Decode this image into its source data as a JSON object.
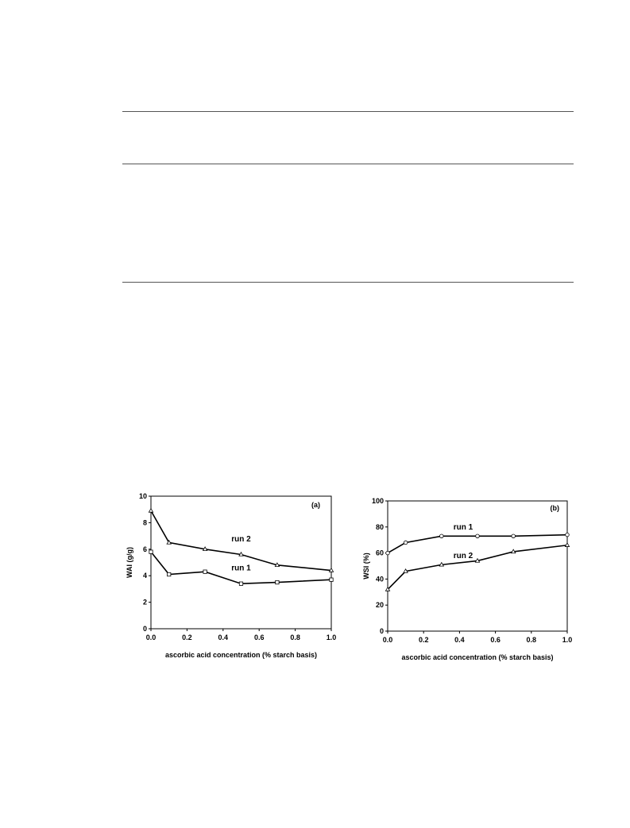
{
  "chart_data": [
    {
      "type": "line",
      "panel_label": "(a)",
      "xlabel": "ascorbic acid concentration (% starch basis)",
      "ylabel": "WAI (g/g)",
      "xlim": [
        0.0,
        1.0
      ],
      "ylim": [
        0,
        10
      ],
      "xticks": [
        "0.0",
        "0.2",
        "0.4",
        "0.6",
        "0.8",
        "1.0"
      ],
      "yticks": [
        "0",
        "2",
        "4",
        "6",
        "8",
        "10"
      ],
      "grid": false,
      "series": [
        {
          "name": "run 2",
          "x": [
            0.0,
            0.1,
            0.3,
            0.5,
            0.7,
            1.0
          ],
          "y": [
            8.9,
            6.5,
            6.0,
            5.6,
            4.8,
            4.4
          ]
        },
        {
          "name": "run 1",
          "x": [
            0.0,
            0.1,
            0.3,
            0.5,
            0.7,
            1.0
          ],
          "y": [
            5.8,
            4.1,
            4.3,
            3.4,
            3.5,
            3.7
          ]
        }
      ]
    },
    {
      "type": "line",
      "panel_label": "(b)",
      "xlabel": "ascorbic acid concentration (% starch basis)",
      "ylabel": "WSI (%)",
      "xlim": [
        0.0,
        1.0
      ],
      "ylim": [
        0,
        100
      ],
      "xticks": [
        "0.0",
        "0.2",
        "0.4",
        "0.6",
        "0.8",
        "1.0"
      ],
      "yticks": [
        "0",
        "20",
        "40",
        "60",
        "80",
        "100"
      ],
      "grid": false,
      "series": [
        {
          "name": "run 1",
          "x": [
            0.0,
            0.1,
            0.3,
            0.5,
            0.7,
            1.0
          ],
          "y": [
            60,
            68,
            73,
            73,
            73,
            74
          ]
        },
        {
          "name": "run 2",
          "x": [
            0.0,
            0.1,
            0.3,
            0.5,
            0.7,
            1.0
          ],
          "y": [
            32,
            46,
            51,
            54,
            61,
            66
          ]
        }
      ]
    }
  ]
}
